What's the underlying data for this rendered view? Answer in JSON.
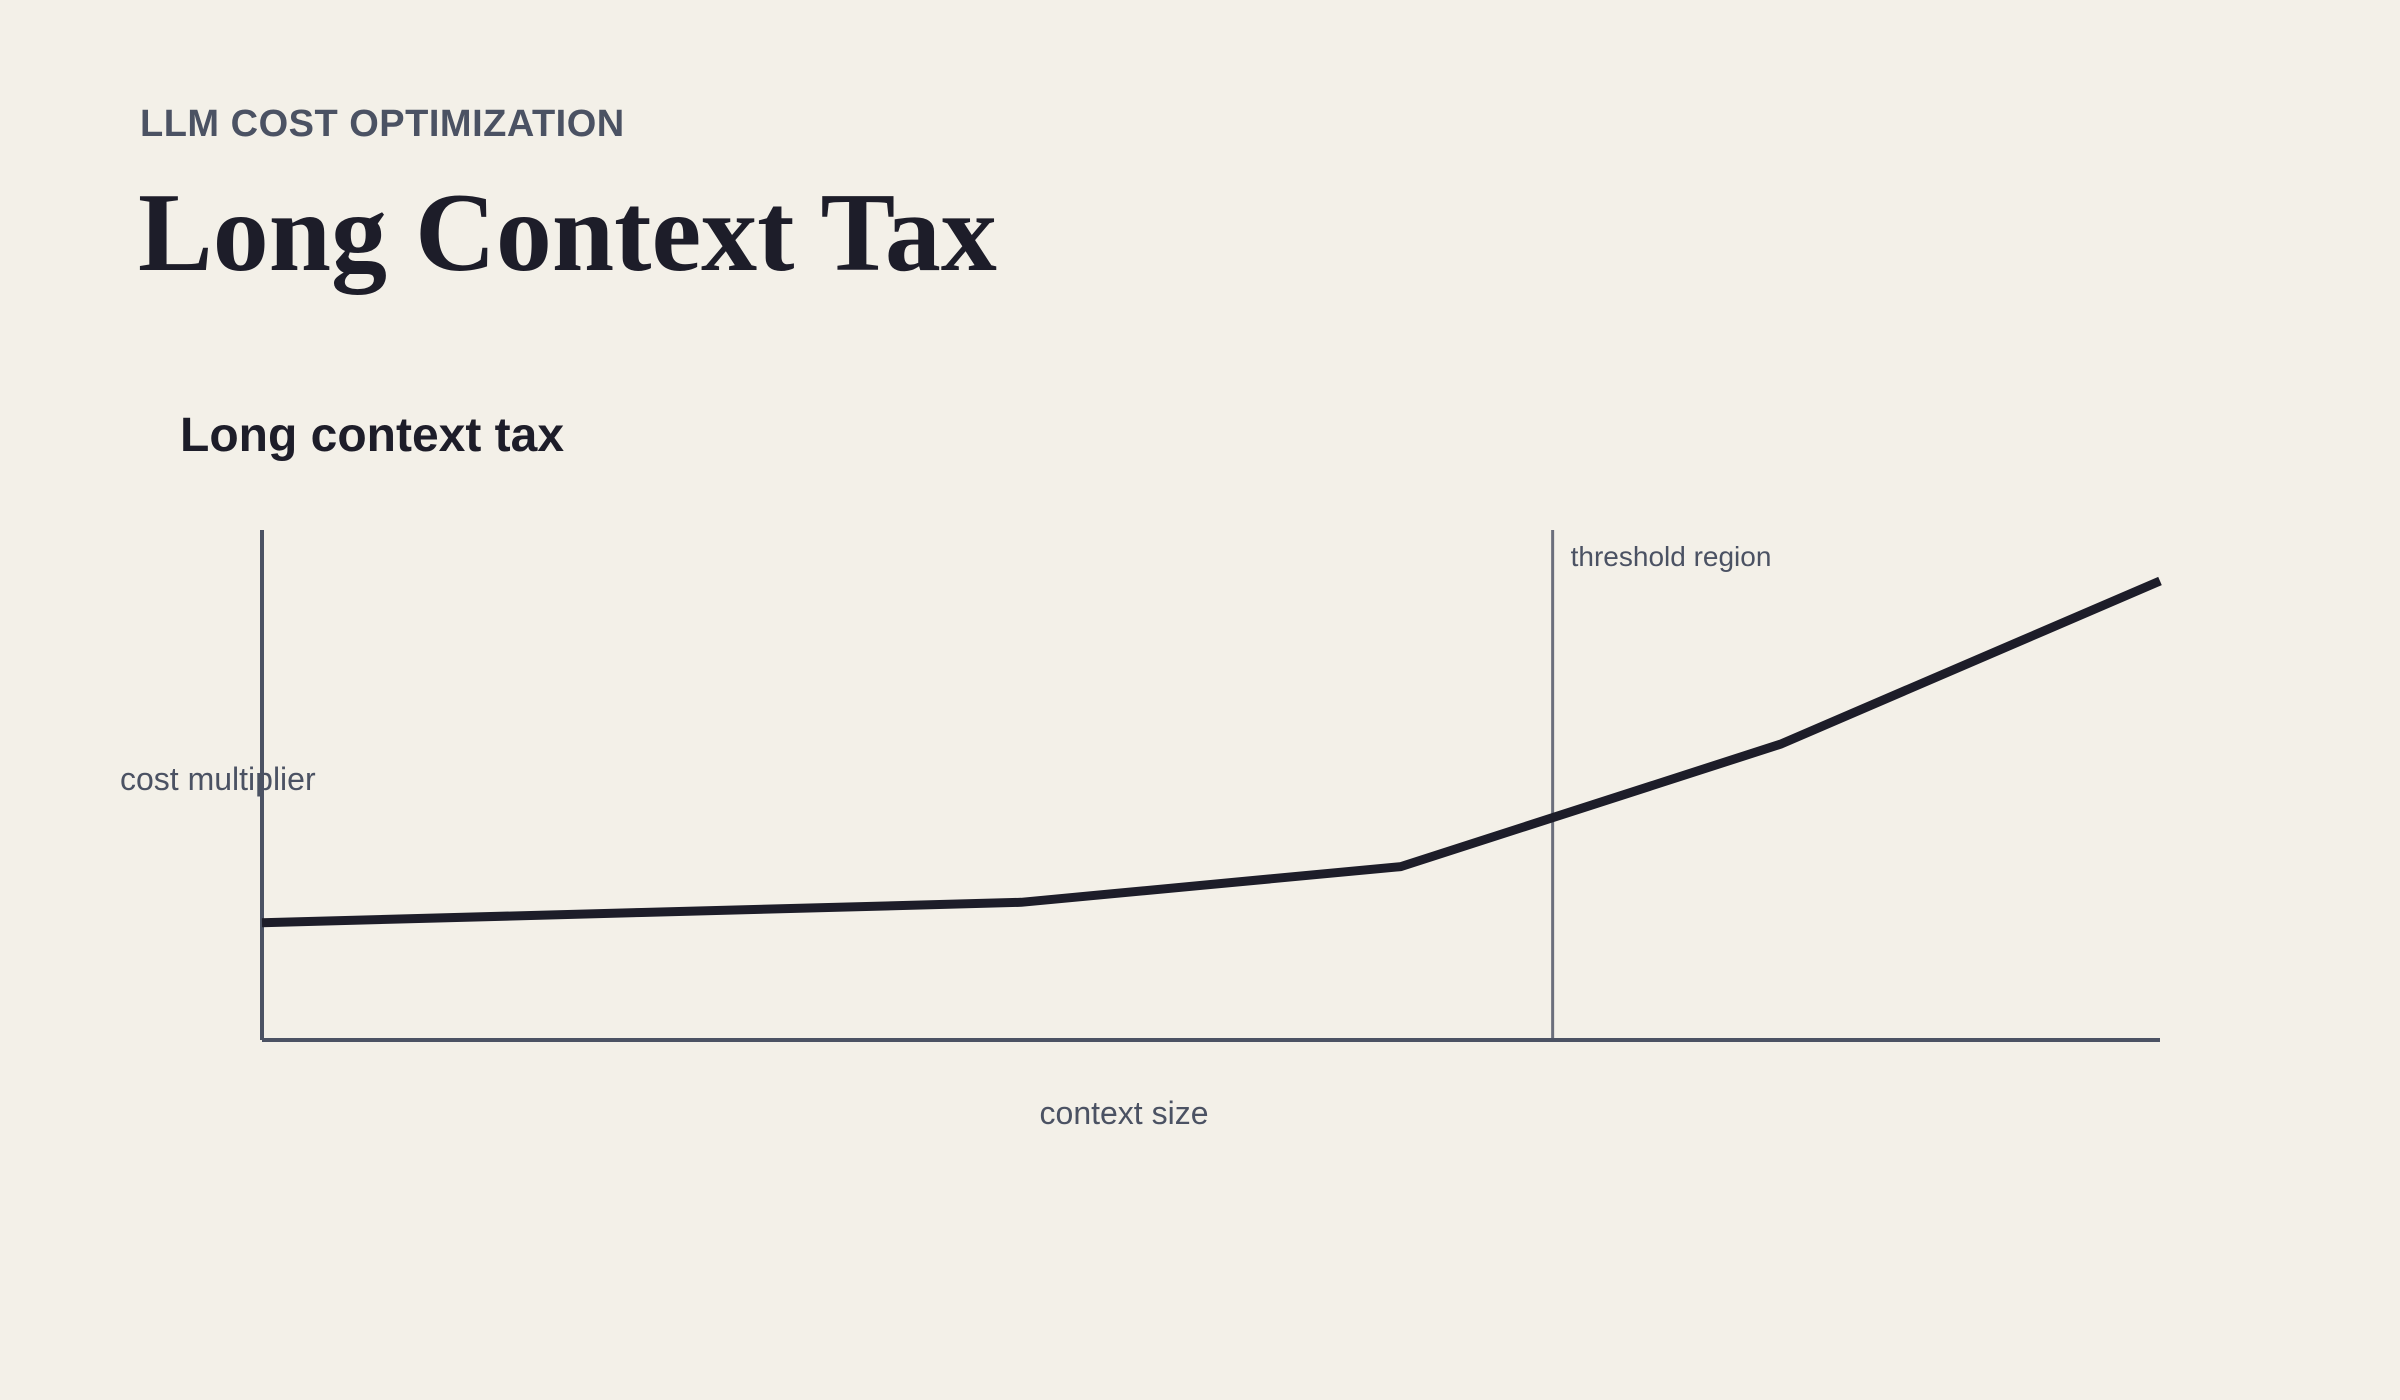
{
  "header": {
    "eyebrow": "LLM COST OPTIMIZATION",
    "title": "Long Context Tax"
  },
  "chart_data": {
    "type": "line",
    "title": "Long context tax",
    "xlabel": "context size",
    "ylabel": "cost multiplier",
    "grid": false,
    "legend": "none",
    "x": [
      0,
      1,
      2,
      3,
      4,
      5
    ],
    "xlim": [
      0,
      5
    ],
    "ylim": [
      0,
      10
    ],
    "series": [
      {
        "values": [
          2.3,
          2.5,
          2.7,
          3.4,
          5.8,
          9.0
        ],
        "color": "#1d1d29"
      }
    ],
    "annotations": [
      {
        "type": "vline",
        "x": 3.4,
        "label": "threshold region",
        "color": "#6b6f7c"
      }
    ],
    "axis_color": "#4b5263"
  }
}
